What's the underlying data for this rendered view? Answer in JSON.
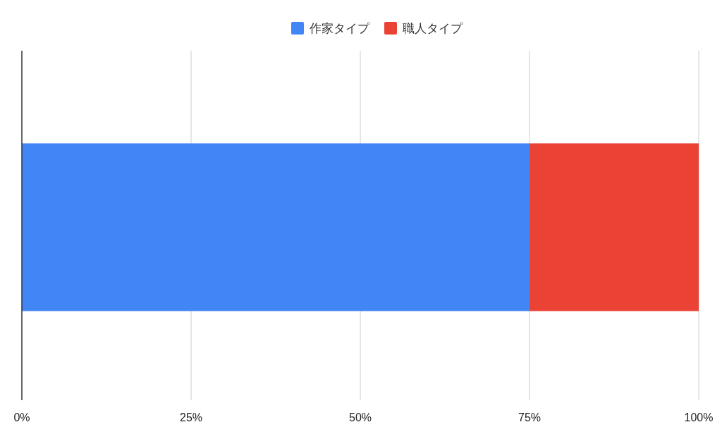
{
  "chart_data": {
    "type": "bar",
    "orientation": "horizontal",
    "stacked": true,
    "categories": [
      null
    ],
    "series": [
      {
        "name": "作家タイプ",
        "color": "#4285f4",
        "values": [
          75
        ]
      },
      {
        "name": "職人タイプ",
        "color": "#ea4335",
        "values": [
          25
        ]
      }
    ],
    "xlim": [
      0,
      100
    ],
    "xticks": [
      {
        "value": 0,
        "label": "0%"
      },
      {
        "value": 25,
        "label": "25%"
      },
      {
        "value": 50,
        "label": "50%"
      },
      {
        "value": 75,
        "label": "75%"
      },
      {
        "value": 100,
        "label": "100%"
      }
    ],
    "grid": "x",
    "legend": "top"
  }
}
